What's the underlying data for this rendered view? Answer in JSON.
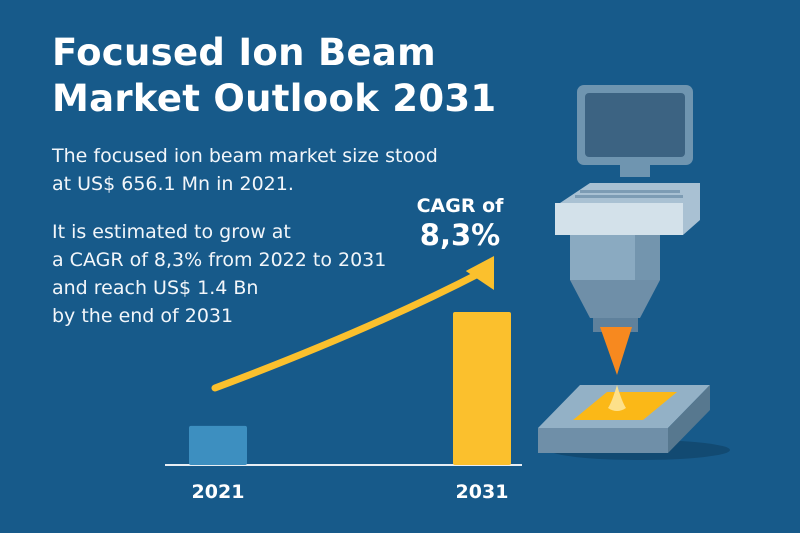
{
  "title_lines": [
    "Focused Ion Beam",
    "Market Outlook 2031"
  ],
  "para1_lines": [
    "The focused ion beam market size stood",
    "at US$ 656.1 Mn in 2021."
  ],
  "para2_lines": [
    "It is estimated to grow at",
    "a CAGR of 8,3% from 2022 to 2031",
    "and reach US$ 1.4 Bn",
    "by the end of 2031"
  ],
  "cagr": {
    "label": "CAGR of",
    "value": "8,3%"
  },
  "colors": {
    "background": "#175a8a",
    "bar_2021": "#3d8fc0",
    "bar_2031": "#fbc02d",
    "arrow": "#fbc02d"
  },
  "chart_data": {
    "type": "bar",
    "categories": [
      "2021",
      "2031"
    ],
    "values": [
      656.1,
      1400
    ],
    "unit": "US$ Mn",
    "ylim": [
      400,
      1400
    ],
    "title": "",
    "xlabel": "",
    "ylabel": "",
    "grid": false
  }
}
